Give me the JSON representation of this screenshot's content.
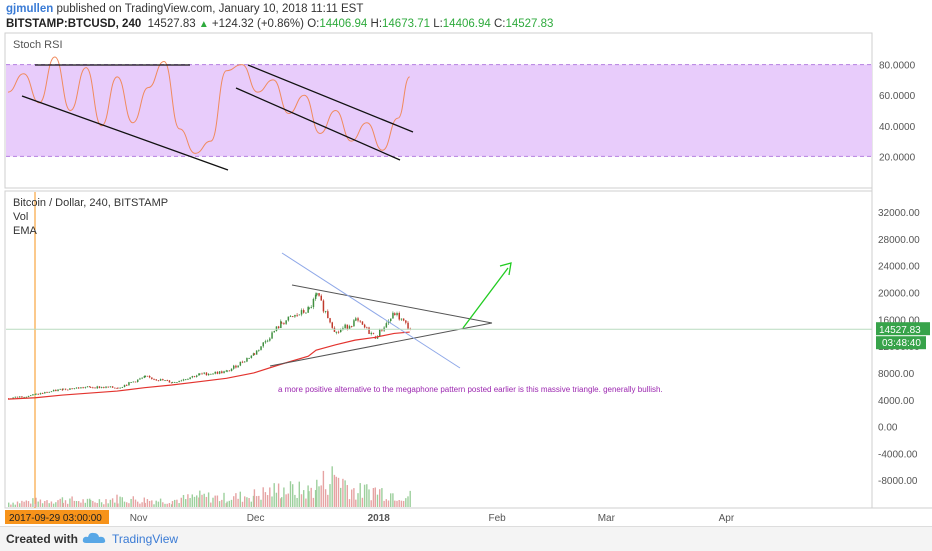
{
  "header": {
    "author": "gjmullen",
    "published_text": "published on TradingView.com, January 10, 2018 11:11 EST",
    "symbol": "BITSTAMP:BTCUSD, 240",
    "last": "14527.83",
    "change": "+124.32 (+0.86%)",
    "o_label": "O:",
    "o": "14406.94",
    "h_label": "H:",
    "h": "14673.71",
    "l_label": "L:",
    "l": "14406.94",
    "c_label": "C:",
    "c": "14527.83"
  },
  "colors": {
    "rsi_band": "#e8ccfb",
    "rsi_line": "#f08a5d",
    "candle_up": "#3f8f3f",
    "candle_down": "#c0392b",
    "ema": "#e3342f",
    "annotation": "#9c27b0",
    "arrow": "#22cc22",
    "blue_line": "#8fa8e8",
    "price_tag": "#37a34a",
    "date_tag": "#f7931a"
  },
  "chart_data": [
    {
      "type": "line",
      "title": "Stoch RSI",
      "ylim": [
        0,
        100
      ],
      "yticks": [
        "80.0000",
        "60.0000",
        "40.0000",
        "20.0000"
      ],
      "band": [
        20,
        80
      ],
      "x": [
        "2017-09-29",
        "2017-10-03",
        "2017-10-07",
        "2017-10-11",
        "2017-10-15",
        "2017-10-19",
        "2017-10-23",
        "2017-10-27",
        "2017-10-31",
        "2017-11-04",
        "2017-11-08",
        "2017-11-12",
        "2017-11-16",
        "2017-11-20",
        "2017-11-24",
        "2017-11-28",
        "2017-12-02",
        "2017-12-06",
        "2017-12-10",
        "2017-12-14",
        "2017-12-18",
        "2017-12-22",
        "2017-12-26",
        "2017-12-30",
        "2018-01-03",
        "2018-01-07",
        "2018-01-10"
      ],
      "values": [
        62,
        74,
        55,
        85,
        50,
        78,
        40,
        72,
        42,
        65,
        82,
        38,
        22,
        30,
        76,
        80,
        62,
        70,
        48,
        60,
        35,
        50,
        30,
        42,
        24,
        45,
        72
      ]
    },
    {
      "type": "line",
      "title": "Bitcoin / Dollar, 240, BITSTAMP",
      "legend": [
        "Vol",
        "EMA"
      ],
      "ylim": [
        -12000,
        35000
      ],
      "yticks": [
        "32000.00",
        "28000.00",
        "24000.00",
        "20000.00",
        "16000.00",
        "12000.00",
        "8000.00",
        "4000.00",
        "0.00",
        "-4000.00",
        "-8000.00"
      ],
      "xticks": [
        "2017-09-29 03:00:00",
        "Nov",
        "Dec",
        "2018",
        "Feb",
        "Mar",
        "Apr"
      ],
      "price_label": "14527.83",
      "countdown_label": "03:48:40",
      "annotation": "a more positive alternative to the megaphone pattern posted earlier is this massive triangle.  generally bullish.",
      "x": [
        "2017-09-29",
        "2017-10-06",
        "2017-10-13",
        "2017-10-20",
        "2017-10-27",
        "2017-11-03",
        "2017-11-10",
        "2017-11-17",
        "2017-11-24",
        "2017-12-01",
        "2017-12-08",
        "2017-12-15",
        "2017-12-17",
        "2017-12-22",
        "2017-12-27",
        "2018-01-01",
        "2018-01-06",
        "2018-01-10"
      ],
      "close": [
        4200,
        4800,
        5600,
        5900,
        5800,
        7400,
        6600,
        7800,
        8200,
        10900,
        15500,
        17500,
        19600,
        14000,
        15800,
        13400,
        16900,
        14527
      ],
      "ema": [
        4100,
        4300,
        4700,
        5000,
        5300,
        5800,
        6200,
        6700,
        7200,
        8000,
        9300,
        10500,
        11400,
        12200,
        12900,
        13300,
        13900,
        14100
      ],
      "volume": [
        900,
        1200,
        1500,
        1100,
        1700,
        1400,
        1300,
        2100,
        1800,
        2400,
        3600,
        3100,
        4200,
        6400,
        3000,
        3400,
        2600,
        2200
      ],
      "vol_ylim": [
        0,
        14000
      ]
    }
  ],
  "footer": {
    "created_with": "Created with",
    "brand": "TradingView"
  }
}
